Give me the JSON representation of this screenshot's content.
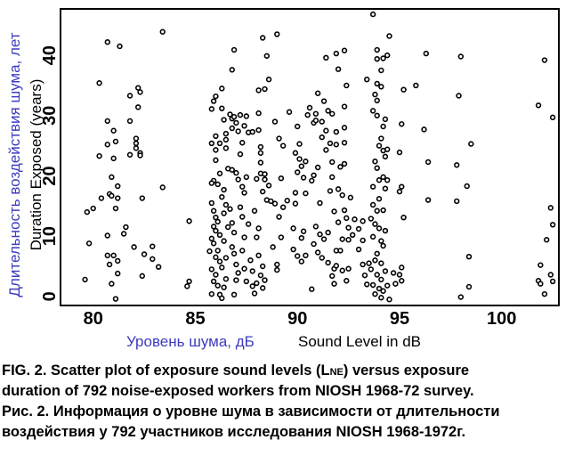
{
  "chart_data": {
    "type": "scatter",
    "xlabel_ru": "Уровень шума, дБ",
    "xlabel": "Sound Level in dB",
    "ylabel_ru": "Длительность воздействия шума, лет",
    "ylabel": "Duration Exposed (years)",
    "xlim": [
      78.4,
      102.8
    ],
    "ylim": [
      -1.5,
      47.7
    ],
    "xticks": [
      "80",
      "85",
      "90",
      "95",
      "100"
    ],
    "yticks": [
      "0",
      "10",
      "20",
      "30",
      "40"
    ],
    "grid": false,
    "accent_color": "#3c3cbe",
    "points": [
      [
        79.6,
        2.8
      ],
      [
        79.7,
        14
      ],
      [
        79.8,
        8.8
      ],
      [
        80,
        14.6
      ],
      [
        80.3,
        35.4
      ],
      [
        80.3,
        23.3
      ],
      [
        80.4,
        16.3
      ],
      [
        80.7,
        42.2
      ],
      [
        80.7,
        29.1
      ],
      [
        80.7,
        25.2
      ],
      [
        80.7,
        10.1
      ],
      [
        80.7,
        6.8
      ],
      [
        80.8,
        5.3
      ],
      [
        80.8,
        17
      ],
      [
        80.9,
        19.8
      ],
      [
        80.9,
        2.1
      ],
      [
        80.9,
        16.7
      ],
      [
        81,
        22.9
      ],
      [
        81,
        6.8
      ],
      [
        81,
        27.5
      ],
      [
        81.1,
        25.7
      ],
      [
        81.1,
        14.6
      ],
      [
        81.2,
        18.3
      ],
      [
        81.2,
        16.3
      ],
      [
        81.2,
        3.8
      ],
      [
        81.2,
        5.9
      ],
      [
        81.1,
        -0.4
      ],
      [
        81.3,
        41.5
      ],
      [
        81.5,
        10.4
      ],
      [
        81.6,
        11.5
      ],
      [
        81.8,
        33.3
      ],
      [
        81.8,
        29.1
      ],
      [
        81.8,
        23.5
      ],
      [
        82,
        8.2
      ],
      [
        82.1,
        26.2
      ],
      [
        82.1,
        25.4
      ],
      [
        82.1,
        24.6
      ],
      [
        82.2,
        34.6
      ],
      [
        82.2,
        31.4
      ],
      [
        82.3,
        33.9
      ],
      [
        82.3,
        23.8
      ],
      [
        82.3,
        23.4
      ],
      [
        82.4,
        16.3
      ],
      [
        82.4,
        3.4
      ],
      [
        82.5,
        7
      ],
      [
        82.9,
        8.3
      ],
      [
        82.9,
        6.2
      ],
      [
        83.2,
        4.9
      ],
      [
        83.4,
        43.9
      ],
      [
        83.4,
        18.1
      ],
      [
        84.6,
        1.7
      ],
      [
        84.7,
        2.5
      ],
      [
        84.7,
        12.5
      ],
      [
        85.8,
        31.1
      ],
      [
        85.9,
        32.4
      ],
      [
        86,
        33.2
      ],
      [
        86.3,
        34.5
      ],
      [
        86.3,
        31.2
      ],
      [
        86,
        26.6
      ],
      [
        85.8,
        25.4
      ],
      [
        86,
        24.3
      ],
      [
        86.2,
        25.4
      ],
      [
        86.4,
        29.3
      ],
      [
        86.5,
        27
      ],
      [
        86.5,
        26
      ],
      [
        86.5,
        24.6
      ],
      [
        86.6,
        21.2
      ],
      [
        86.7,
        30.2
      ],
      [
        86.8,
        29.5
      ],
      [
        86.8,
        27.9
      ],
      [
        86.9,
        29.8
      ],
      [
        87,
        28.8
      ],
      [
        87.1,
        27.4
      ],
      [
        87.2,
        30.1
      ],
      [
        87.3,
        25.5
      ],
      [
        87.2,
        23.6
      ],
      [
        87.4,
        28.3
      ],
      [
        87.5,
        29.9
      ],
      [
        87.6,
        27.2
      ],
      [
        86.9,
        40.9
      ],
      [
        86.8,
        37.6
      ],
      [
        86,
        22.6
      ],
      [
        86.2,
        20.4
      ],
      [
        85.9,
        19.2
      ],
      [
        86.1,
        18.6
      ],
      [
        85.8,
        18.8
      ],
      [
        86.4,
        17.7
      ],
      [
        86.8,
        21
      ],
      [
        87,
        20.5
      ],
      [
        87.1,
        19.4
      ],
      [
        87.3,
        18.2
      ],
      [
        87.5,
        19.8
      ],
      [
        87.4,
        17.2
      ],
      [
        85.8,
        15.5
      ],
      [
        85.9,
        14.2
      ],
      [
        86,
        13.1
      ],
      [
        86.1,
        12.4
      ],
      [
        85.9,
        11.6
      ],
      [
        86,
        10.9
      ],
      [
        86.2,
        10.2
      ],
      [
        85.8,
        9.6
      ],
      [
        85.9,
        8.8
      ],
      [
        86.1,
        7.6
      ],
      [
        85.7,
        7.5
      ],
      [
        86,
        6.5
      ],
      [
        86.2,
        5.8
      ],
      [
        85.8,
        4.5
      ],
      [
        86,
        3.6
      ],
      [
        85.9,
        2.5
      ],
      [
        86.1,
        1.8
      ],
      [
        85.8,
        0.4
      ],
      [
        86.2,
        0.3
      ],
      [
        86.3,
        -0.3
      ],
      [
        86.4,
        1.5
      ],
      [
        86.5,
        2.9
      ],
      [
        86.3,
        4.8
      ],
      [
        86.5,
        6.4
      ],
      [
        86.4,
        9.2
      ],
      [
        86.6,
        11.5
      ],
      [
        86.4,
        13.8
      ],
      [
        86.5,
        15.2
      ],
      [
        86.3,
        16.5
      ],
      [
        86.7,
        14.5
      ],
      [
        86.8,
        12.2
      ],
      [
        86.9,
        10.6
      ],
      [
        86.8,
        8.2
      ],
      [
        86.9,
        7.1
      ],
      [
        87,
        5.3
      ],
      [
        87.1,
        3.9
      ],
      [
        87,
        2.7
      ],
      [
        86.9,
        0.3
      ],
      [
        87.2,
        14.8
      ],
      [
        87.3,
        13.2
      ],
      [
        87.4,
        9.8
      ],
      [
        87.3,
        7.6
      ],
      [
        87.4,
        4.6
      ],
      [
        87.5,
        2.5
      ],
      [
        87.6,
        12
      ],
      [
        87.7,
        6
      ],
      [
        87.8,
        4.2
      ],
      [
        87.8,
        1.7
      ],
      [
        87.9,
        0.5
      ],
      [
        88,
        2.2
      ],
      [
        88,
        9.8
      ],
      [
        88.1,
        11.3
      ],
      [
        87.9,
        14.2
      ],
      [
        88.1,
        6.8
      ],
      [
        88.2,
        3.5
      ],
      [
        88.3,
        1.4
      ],
      [
        88.3,
        5
      ],
      [
        88.4,
        2.7
      ],
      [
        88.1,
        27.6
      ],
      [
        87.8,
        27.3
      ],
      [
        88.2,
        24.8
      ],
      [
        88.2,
        23.8
      ],
      [
        88.2,
        22.2
      ],
      [
        88.2,
        20.4
      ],
      [
        88,
        19.5
      ],
      [
        88.4,
        20.3
      ],
      [
        88.4,
        19.4
      ],
      [
        88.5,
        16
      ],
      [
        88.3,
        17.4
      ],
      [
        88.6,
        18.4
      ],
      [
        88.7,
        15.8
      ],
      [
        88.9,
        15.4
      ],
      [
        89.1,
        13.2
      ],
      [
        89.2,
        9.8
      ],
      [
        88.8,
        8.2
      ],
      [
        89,
        5.3
      ],
      [
        89,
        4.4
      ],
      [
        88.4,
        34.4
      ],
      [
        88.1,
        34.2
      ],
      [
        88.6,
        36
      ],
      [
        88.5,
        39.9
      ],
      [
        88.3,
        42.9
      ],
      [
        89,
        43.5
      ],
      [
        88.1,
        30.4
      ],
      [
        88.9,
        29
      ],
      [
        89.1,
        26.2
      ],
      [
        89.3,
        25
      ],
      [
        89.2,
        19.6
      ],
      [
        89.3,
        14.8
      ],
      [
        89.5,
        15.9
      ],
      [
        89.6,
        30.6
      ],
      [
        90,
        28.2
      ],
      [
        89.9,
        23.8
      ],
      [
        90.1,
        22.8
      ],
      [
        90.1,
        25.3
      ],
      [
        90,
        20.6
      ],
      [
        90.2,
        21.6
      ],
      [
        90.3,
        19.7
      ],
      [
        90.4,
        22.4
      ],
      [
        89.9,
        17.2
      ],
      [
        90.4,
        17.1
      ],
      [
        89.9,
        15.4
      ],
      [
        89.8,
        11.3
      ],
      [
        90.3,
        10.8
      ],
      [
        90.2,
        9.7
      ],
      [
        89.8,
        7.8
      ],
      [
        90,
        6.7
      ],
      [
        90.2,
        5.8
      ],
      [
        90.4,
        6.8
      ],
      [
        90.5,
        30.1
      ],
      [
        90.6,
        31.3
      ],
      [
        90.8,
        28.8
      ],
      [
        90.9,
        30.3
      ],
      [
        90.9,
        29.2
      ],
      [
        91,
        33.7
      ],
      [
        91.3,
        32.4
      ],
      [
        91.2,
        29
      ],
      [
        91.5,
        30.8
      ],
      [
        91.4,
        27.5
      ],
      [
        91.2,
        26.4
      ],
      [
        91.6,
        25.4
      ],
      [
        91.4,
        24.3
      ],
      [
        91,
        21.4
      ],
      [
        90.8,
        20.1
      ],
      [
        90.7,
        19.2
      ],
      [
        91.1,
        15.5
      ],
      [
        90.9,
        11.6
      ],
      [
        91.1,
        10.3
      ],
      [
        91.3,
        9.5
      ],
      [
        91.5,
        10.6
      ],
      [
        90.8,
        8.7
      ],
      [
        91,
        7.3
      ],
      [
        91.2,
        6.4
      ],
      [
        91.5,
        5.6
      ],
      [
        90.7,
        1.2
      ],
      [
        91.4,
        39.6
      ],
      [
        91.9,
        40.3
      ],
      [
        92.3,
        40.8
      ],
      [
        92,
        37.7
      ],
      [
        92.4,
        35
      ],
      [
        91.7,
        30.3
      ],
      [
        92.3,
        31.5
      ],
      [
        91.9,
        27.3
      ],
      [
        92.3,
        28
      ],
      [
        91.9,
        25.2
      ],
      [
        92.3,
        25.5
      ],
      [
        91.7,
        22.3
      ],
      [
        92.1,
        21.5
      ],
      [
        92.3,
        22
      ],
      [
        91.6,
        17.5
      ],
      [
        91.7,
        19.8
      ],
      [
        92,
        17.8
      ],
      [
        92.2,
        16.8
      ],
      [
        92.6,
        16.4
      ],
      [
        91.8,
        14.1
      ],
      [
        92,
        12.3
      ],
      [
        92.3,
        14.3
      ],
      [
        92.4,
        13
      ],
      [
        92.5,
        11.4
      ],
      [
        92.8,
        12.8
      ],
      [
        92.7,
        10.2
      ],
      [
        92.5,
        9.4
      ],
      [
        92.2,
        9.5
      ],
      [
        91.9,
        7.6
      ],
      [
        92.1,
        7.6
      ],
      [
        91.8,
        4.6
      ],
      [
        91.7,
        3.4
      ],
      [
        91.8,
        2.1
      ],
      [
        91.9,
        5.1
      ],
      [
        92.2,
        4.3
      ],
      [
        92.4,
        2.6
      ],
      [
        92.5,
        4.6
      ],
      [
        93,
        11.2
      ],
      [
        93.2,
        9.3
      ],
      [
        93,
        7.8
      ],
      [
        93.2,
        5.3
      ],
      [
        93.3,
        3.5
      ],
      [
        93.5,
        5.5
      ],
      [
        93.4,
        2
      ],
      [
        93.2,
        12.5
      ],
      [
        93.7,
        46.8
      ],
      [
        93.9,
        40.9
      ],
      [
        93.9,
        39.4
      ],
      [
        94.2,
        39.5
      ],
      [
        94.4,
        40
      ],
      [
        94.5,
        43.2
      ],
      [
        94.1,
        37.5
      ],
      [
        93.9,
        35.3
      ],
      [
        94.1,
        34.8
      ],
      [
        93.4,
        36
      ],
      [
        93.8,
        33.5
      ],
      [
        93.9,
        32.5
      ],
      [
        93.9,
        30
      ],
      [
        94.3,
        29.4
      ],
      [
        93.7,
        30.8
      ],
      [
        94.2,
        28.2
      ],
      [
        94.1,
        26.2
      ],
      [
        94,
        25
      ],
      [
        94.2,
        24.2
      ],
      [
        94.3,
        23.2
      ],
      [
        94.4,
        24.4
      ],
      [
        93.8,
        22.4
      ],
      [
        93.9,
        21.3
      ],
      [
        94,
        19.3
      ],
      [
        94.2,
        19.8
      ],
      [
        94.4,
        19.3
      ],
      [
        93.7,
        18.2
      ],
      [
        94.3,
        17.9
      ],
      [
        94,
        16.2
      ],
      [
        93.7,
        15.2
      ],
      [
        93.9,
        14.2
      ],
      [
        94.2,
        14.3
      ],
      [
        93.6,
        12.9
      ],
      [
        93.8,
        12
      ],
      [
        94,
        11.3
      ],
      [
        94.3,
        10.9
      ],
      [
        93.7,
        9.9
      ],
      [
        94.1,
        9.2
      ],
      [
        94.2,
        8.4
      ],
      [
        93.9,
        7.1
      ],
      [
        93.8,
        6
      ],
      [
        94.1,
        5.5
      ],
      [
        94.3,
        4.2
      ],
      [
        93.6,
        4.5
      ],
      [
        93.9,
        3.6
      ],
      [
        94.1,
        2.8
      ],
      [
        93.7,
        1.9
      ],
      [
        94,
        1.3
      ],
      [
        93.8,
        0.4
      ],
      [
        94.2,
        0.9
      ],
      [
        94.4,
        1.8
      ],
      [
        94.1,
        -0.2
      ],
      [
        94.5,
        -0.5
      ],
      [
        94.7,
        3.9
      ],
      [
        94.8,
        2.1
      ],
      [
        95,
        3.6
      ],
      [
        95.1,
        4.8
      ],
      [
        95.1,
        2.6
      ],
      [
        95.2,
        13.1
      ],
      [
        95,
        17.4
      ],
      [
        95.1,
        18.2
      ],
      [
        95,
        23.9
      ],
      [
        95.1,
        28.6
      ],
      [
        95.2,
        34.3
      ],
      [
        95.8,
        35
      ],
      [
        96.3,
        40.3
      ],
      [
        96.2,
        27.7
      ],
      [
        96.4,
        22.3
      ],
      [
        96.4,
        16
      ],
      [
        97.8,
        15.8
      ],
      [
        97.8,
        21.8
      ],
      [
        97.9,
        33.3
      ],
      [
        98,
        39.8
      ],
      [
        98,
        -0.1
      ],
      [
        98.3,
        18.3
      ],
      [
        98.4,
        6.6
      ],
      [
        98.4,
        1.6
      ],
      [
        98.5,
        25.3
      ],
      [
        101.8,
        31.7
      ],
      [
        102.1,
        39.2
      ],
      [
        101.8,
        2.6
      ],
      [
        101.9,
        2.1
      ],
      [
        101.9,
        5.2
      ],
      [
        102.1,
        0.4
      ],
      [
        102.2,
        9.4
      ],
      [
        102.4,
        14.7
      ],
      [
        102.4,
        3.6
      ],
      [
        102.5,
        2.5
      ],
      [
        102.5,
        11.9
      ],
      [
        102.5,
        29.7
      ]
    ]
  },
  "caption": {
    "en_line1_a": "FIG. 2. Scatter plot of exposure sound levels (L",
    "en_line1_sub": "NE",
    "en_line1_b": ") versus exposure",
    "en_line2": "duration of 792 noise-exposed workers from NIOSH 1968-72 survey.",
    "ru_line1": "Рис. 2. Информация о уровне шума в зависимости от длительности",
    "ru_line2": "воздействия у 792 участников исследования NIOSH 1968-1972г."
  }
}
